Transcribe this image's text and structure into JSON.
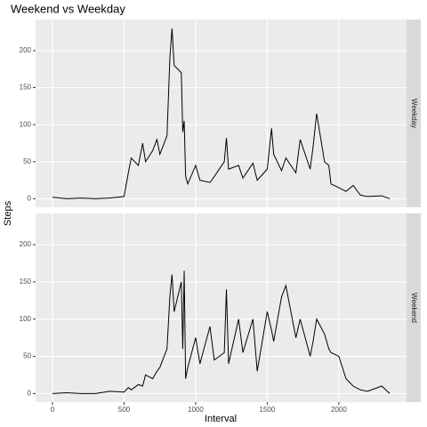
{
  "chart_data": {
    "type": "line",
    "title": "Weekend vs Weekday",
    "x_label": "Interval",
    "y_label": "Steps",
    "x": [
      0,
      100,
      200,
      300,
      400,
      500,
      530,
      550,
      600,
      630,
      650,
      700,
      730,
      750,
      800,
      820,
      835,
      850,
      900,
      910,
      920,
      930,
      945,
      1000,
      1030,
      1100,
      1130,
      1200,
      1215,
      1230,
      1300,
      1330,
      1400,
      1430,
      1500,
      1530,
      1545,
      1600,
      1630,
      1700,
      1730,
      1800,
      1820,
      1845,
      1900,
      1930,
      1945,
      2000,
      2050,
      2100,
      2150,
      2200,
      2300,
      2355
    ],
    "series": [
      {
        "name": "Weekday",
        "color": "#000000",
        "values": [
          2,
          0,
          1,
          0,
          1,
          3,
          35,
          55,
          45,
          75,
          50,
          65,
          80,
          60,
          85,
          190,
          230,
          180,
          170,
          90,
          105,
          30,
          20,
          45,
          25,
          22,
          30,
          50,
          82,
          40,
          45,
          28,
          48,
          25,
          40,
          95,
          60,
          38,
          55,
          35,
          80,
          40,
          70,
          115,
          50,
          45,
          20,
          15,
          10,
          18,
          5,
          3,
          4,
          0
        ]
      },
      {
        "name": "Weekend",
        "color": "#000000",
        "values": [
          0,
          1,
          0,
          0,
          3,
          2,
          8,
          5,
          12,
          10,
          25,
          20,
          30,
          35,
          60,
          130,
          160,
          110,
          150,
          60,
          165,
          20,
          35,
          75,
          40,
          90,
          45,
          55,
          140,
          40,
          100,
          55,
          100,
          30,
          110,
          85,
          70,
          130,
          145,
          75,
          100,
          50,
          70,
          100,
          80,
          60,
          55,
          50,
          20,
          10,
          5,
          3,
          10,
          0
        ]
      }
    ],
    "xlim": [
      -117.75,
      2472.75
    ],
    "xticks": [
      0,
      500,
      1000,
      1500,
      2000
    ],
    "ylim": [
      -11.5,
      241.9
    ],
    "yticks": [
      0,
      50,
      100,
      150,
      200
    ],
    "grid": true
  }
}
